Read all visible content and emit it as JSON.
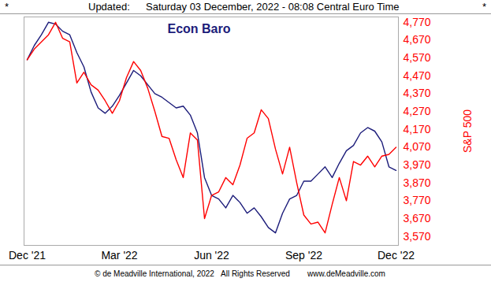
{
  "chart_data": {
    "type": "line",
    "title": "Econ Baro",
    "header": [
      "*",
      "Updated:",
      "Saturday 03 December, 2022 - 08:08 Central Euro Time",
      "*"
    ],
    "footer": [
      "© de Meadville International, 2022",
      "All Rights Reserved",
      "www.deMeadville.com"
    ],
    "y_label": "S&P 500",
    "categories": [
      "Dec '21",
      null,
      null,
      null,
      null,
      null,
      null,
      null,
      null,
      null,
      null,
      null,
      null,
      "Mar '22",
      null,
      null,
      null,
      null,
      null,
      null,
      null,
      null,
      null,
      null,
      null,
      null,
      "Jun '22",
      null,
      null,
      null,
      null,
      null,
      null,
      null,
      null,
      null,
      null,
      null,
      null,
      "Sep '22",
      null,
      null,
      null,
      null,
      null,
      null,
      null,
      null,
      null,
      null,
      null,
      null,
      "Dec '22"
    ],
    "series": [
      {
        "name": "Econ Baro",
        "color": "#1c1c7a",
        "values": [
          4560,
          4640,
          4700,
          4770,
          4760,
          4720,
          4700,
          4600,
          4520,
          4380,
          4290,
          4260,
          4300,
          4360,
          4430,
          4500,
          4470,
          4420,
          4370,
          4350,
          4320,
          4290,
          4300,
          4250,
          4150,
          3900,
          3800,
          3780,
          3730,
          3800,
          3760,
          3700,
          3730,
          3680,
          3620,
          3590,
          3700,
          3780,
          3800,
          3880,
          3880,
          3920,
          3960,
          3900,
          3980,
          4050,
          4080,
          4150,
          4180,
          4160,
          4100,
          3960,
          3940
        ]
      },
      {
        "name": "S&P 500",
        "color": "#ff0000",
        "values": [
          4560,
          4620,
          4660,
          4700,
          4770,
          4680,
          4660,
          4430,
          4490,
          4420,
          4390,
          4330,
          4260,
          4330,
          4460,
          4550,
          4500,
          4400,
          4270,
          4130,
          4120,
          4000,
          3900,
          4150,
          4110,
          3670,
          3800,
          3820,
          3900,
          3860,
          3970,
          4120,
          4150,
          4280,
          4230,
          4060,
          3920,
          4070,
          3870,
          3690,
          3640,
          3650,
          3590,
          3750,
          3900,
          3770,
          3990,
          3970,
          4020,
          3960,
          4020,
          4030,
          4070
        ]
      }
    ],
    "ylim": [
      3520,
      4800
    ],
    "yticks": [
      3570,
      3670,
      3770,
      3870,
      3970,
      4070,
      4170,
      4270,
      4370,
      4470,
      4570,
      4670,
      4770
    ]
  }
}
